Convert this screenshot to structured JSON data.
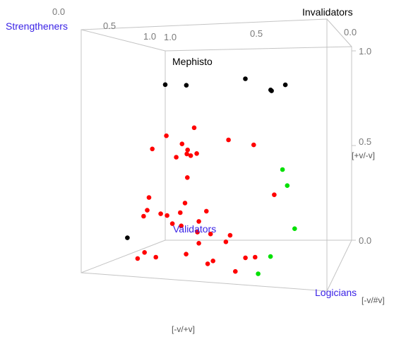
{
  "chart_data": {
    "type": "scatter",
    "projection": "3d-cube",
    "x_axis_label": "[-v/+v]",
    "right_axis_label": "[+v/-v]",
    "corner_axis_label": "[-v/#v]",
    "ticks": {
      "top_front": [
        "0.0",
        "0.5",
        "1.0"
      ],
      "top_back": [
        "1.0",
        "0.5",
        "0.0"
      ],
      "right": [
        "1.0",
        "0.5",
        "0.0"
      ]
    },
    "corner_labels": [
      {
        "id": "strengtheners",
        "text": "Strengtheners",
        "color": "#3a22e6"
      },
      {
        "id": "invalidators",
        "text": "Invalidators",
        "color": "#000000"
      },
      {
        "id": "mephisto",
        "text": "Mephisto",
        "color": "#000000"
      },
      {
        "id": "validators",
        "text": "Validators",
        "color": "#3a22e6"
      },
      {
        "id": "logicians",
        "text": "Logicians",
        "color": "#3a22e6"
      }
    ],
    "grid": false,
    "legend": "none",
    "series": [
      {
        "color": "#000000",
        "points": [
          [
            0.0,
            0.64,
            1.0
          ],
          [
            0.12,
            0.66,
            0.9
          ],
          [
            0.35,
            0.7,
            0.93
          ],
          [
            0.46,
            0.66,
            0.92
          ],
          [
            0.47,
            0.67,
            0.88
          ],
          [
            0.54,
            0.7,
            0.85
          ],
          [
            0.0,
            0.07,
            0.55
          ]
        ]
      },
      {
        "color": "#ff0000",
        "points": [
          [
            0.1,
            0.18,
            0.45
          ],
          [
            0.18,
            0.2,
            0.42
          ],
          [
            0.18,
            0.48,
            0.32
          ],
          [
            0.04,
            0.22,
            0.69
          ],
          [
            0.2,
            0.51,
            0.76
          ],
          [
            0.36,
            0.48,
            0.7
          ],
          [
            0.49,
            0.48,
            0.62
          ],
          [
            0.36,
            0.15,
            0.33
          ],
          [
            0.11,
            0.02,
            0.35
          ],
          [
            0.11,
            0.15,
            0.7
          ],
          [
            0.27,
            0.18,
            0.7
          ],
          [
            0.09,
            0.47,
            0.75
          ],
          [
            0.06,
            0.18,
            0.61
          ],
          [
            0.12,
            0.38,
            0.78
          ],
          [
            0.19,
            0.21,
            0.68
          ],
          [
            0.17,
            0.4,
            0.76
          ],
          [
            0.13,
            0.43,
            0.82
          ],
          [
            0.2,
            0.4,
            0.79
          ],
          [
            0.18,
            0.42,
            0.74
          ],
          [
            0.23,
            0.33,
            0.59
          ],
          [
            0.22,
            0.41,
            0.66
          ],
          [
            0.27,
            0.06,
            0.61
          ],
          [
            0.27,
            0.15,
            0.61
          ],
          [
            0.08,
            0.02,
            0.52
          ],
          [
            0.2,
            0.15,
            0.5
          ],
          [
            0.25,
            0.15,
            0.46
          ],
          [
            0.16,
            0.02,
            0.42
          ],
          [
            0.28,
            0.22,
            0.36
          ],
          [
            0.28,
            0.04,
            0.43
          ],
          [
            0.4,
            0.14,
            0.37
          ],
          [
            0.41,
            0.03,
            0.37
          ],
          [
            0.5,
            0.15,
            0.31
          ],
          [
            0.5,
            0.13,
            0.26
          ],
          [
            0.6,
            0.08,
            0.2
          ],
          [
            0.6,
            0.04,
            0.08
          ],
          [
            0.46,
            0.05,
            0.16
          ],
          [
            0.7,
            0.34,
            0.25
          ],
          [
            0.67,
            0.1,
            0.11
          ]
        ]
      },
      {
        "color": "#00e000",
        "points": [
          [
            0.72,
            0.44,
            0.29
          ],
          [
            0.79,
            0.21,
            0.23
          ],
          [
            0.77,
            0.39,
            0.2
          ],
          [
            0.76,
            0.12,
            0.03
          ],
          [
            0.72,
            0.05,
            0.0
          ]
        ]
      }
    ]
  }
}
